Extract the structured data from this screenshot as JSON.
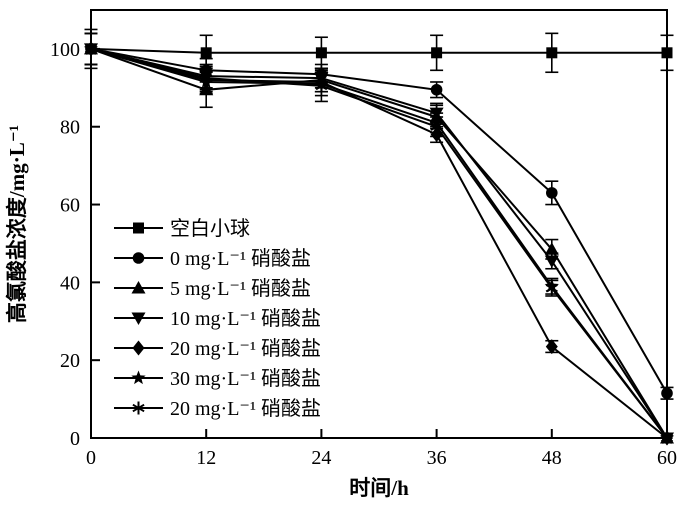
{
  "chart_data": {
    "type": "line",
    "title": "",
    "xlabel": "时间/h",
    "ylabel": "高氯酸盐浓度/mg·L⁻¹",
    "x": [
      0,
      12,
      24,
      36,
      48,
      60
    ],
    "xlim": [
      0,
      60
    ],
    "ylim": [
      0,
      110
    ],
    "xticks": [
      0,
      12,
      24,
      36,
      48,
      60
    ],
    "yticks": [
      0,
      20,
      40,
      60,
      80,
      100
    ],
    "grid": false,
    "legend_position": "inside-left",
    "line_color": "#000000",
    "background": "#ffffff",
    "error_bars": true,
    "series": [
      {
        "name": "空白小球",
        "marker": "square",
        "values": [
          100,
          99,
          99,
          99,
          99,
          99
        ],
        "errors": [
          5,
          4.5,
          4,
          4.5,
          5,
          4.5
        ]
      },
      {
        "name": "0 mg·L⁻¹ 硝酸盐",
        "marker": "circle",
        "values": [
          100,
          94.5,
          93.5,
          89.5,
          63,
          11.5
        ],
        "errors": [
          4,
          3,
          2.5,
          2,
          3,
          1.5
        ]
      },
      {
        "name": "5 mg·L⁻¹ 硝酸盐",
        "marker": "triangle-up",
        "values": [
          100,
          89.5,
          92,
          82.5,
          48.5,
          0
        ],
        "errors": [
          4,
          4.5,
          3,
          3,
          2.5,
          0
        ]
      },
      {
        "name": "10 mg·L⁻¹ 硝酸盐",
        "marker": "triangle-down",
        "values": [
          100,
          93,
          92.5,
          83.5,
          45.5,
          0
        ],
        "errors": [
          4,
          3,
          2.5,
          2.5,
          2,
          0
        ]
      },
      {
        "name": "20 mg·L⁻¹ 硝酸盐",
        "marker": "diamond",
        "values": [
          100,
          92,
          91.5,
          78,
          23.5,
          0
        ],
        "errors": [
          4,
          3,
          2.5,
          2,
          1.5,
          0
        ]
      },
      {
        "name": "30 mg·L⁻¹ 硝酸盐",
        "marker": "star",
        "values": [
          100,
          91.5,
          91,
          81,
          39,
          0
        ],
        "errors": [
          4,
          3,
          3,
          2.5,
          2,
          0
        ]
      },
      {
        "name": "20 mg·L⁻¹ 硝酸盐",
        "marker": "asterisk",
        "values": [
          100,
          92.5,
          90.5,
          80,
          38.5,
          0
        ],
        "errors": [
          4,
          3,
          4,
          2.5,
          2,
          0
        ]
      }
    ]
  }
}
